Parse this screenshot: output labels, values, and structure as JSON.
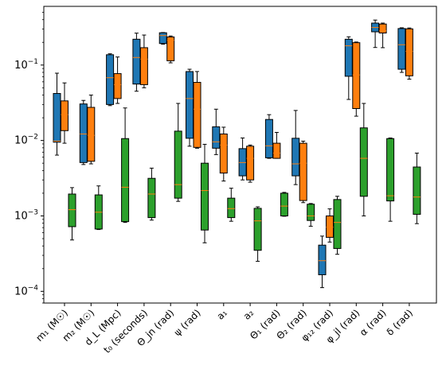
{
  "chart_data": {
    "type": "boxplot",
    "y_scale": "log",
    "ylim": [
      7e-05,
      0.6
    ],
    "y_ticks": [
      {
        "value": 0.0001,
        "base": "10",
        "exp": "−4"
      },
      {
        "value": 0.001,
        "base": "10",
        "exp": "−3"
      },
      {
        "value": 0.01,
        "base": "10",
        "exp": "−2"
      },
      {
        "value": 0.1,
        "base": "10",
        "exp": "−1"
      }
    ],
    "categories": [
      "m₁ (M☉)",
      "m₂ (M☉)",
      "d_L (Mpc)",
      "t₀ (seconds)",
      "Θ_jn (rad)",
      "ψ (rad)",
      "a₁",
      "a₂",
      "Θ₁ (rad)",
      "Θ₂ (rad)",
      "φ₁₂ (rad)",
      "φ_jl (rad)",
      "α (rad)",
      "δ (rad)"
    ],
    "series": [
      {
        "color": "#1f77b4",
        "boxes": [
          {
            "cat": 0,
            "min": 0.0064,
            "q1": 0.0095,
            "median": 0.0098,
            "q3": 0.042,
            "max": 0.078
          },
          {
            "cat": 1,
            "min": 0.0048,
            "q1": 0.0051,
            "median": 0.0122,
            "q3": 0.0305,
            "max": 0.034
          },
          {
            "cat": 2,
            "min": 0.029,
            "q1": 0.03,
            "median": 0.068,
            "q3": 0.137,
            "max": 0.141
          },
          {
            "cat": 3,
            "min": 0.045,
            "q1": 0.056,
            "median": 0.126,
            "q3": 0.22,
            "max": 0.265
          },
          {
            "cat": 4,
            "min": 0.189,
            "q1": 0.193,
            "median": 0.246,
            "q3": 0.268,
            "max": 0.27
          },
          {
            "cat": 5,
            "min": 0.0084,
            "q1": 0.0107,
            "median": 0.036,
            "q3": 0.082,
            "max": 0.088
          },
          {
            "cat": 6,
            "min": 0.0065,
            "q1": 0.0079,
            "median": 0.0096,
            "q3": 0.0152,
            "max": 0.026
          },
          {
            "cat": 7,
            "min": 0.003,
            "q1": 0.0034,
            "median": 0.0051,
            "q3": 0.0078,
            "max": 0.0108
          },
          {
            "cat": 8,
            "min": 0.0058,
            "q1": 0.0059,
            "median": 0.0085,
            "q3": 0.019,
            "max": 0.022
          },
          {
            "cat": 9,
            "min": 0.0026,
            "q1": 0.0034,
            "median": 0.0049,
            "q3": 0.0107,
            "max": 0.025
          },
          {
            "cat": 10,
            "min": 0.000112,
            "q1": 0.000166,
            "median": 0.000255,
            "q3": 0.00041,
            "max": 0.00054
          },
          {
            "cat": 11,
            "min": 0.035,
            "q1": 0.071,
            "median": 0.18,
            "q3": 0.22,
            "max": 0.237
          },
          {
            "cat": 12,
            "min": 0.171,
            "q1": 0.276,
            "median": 0.315,
            "q3": 0.36,
            "max": 0.395
          },
          {
            "cat": 13,
            "min": 0.08,
            "q1": 0.088,
            "median": 0.186,
            "q3": 0.305,
            "max": 0.312
          }
        ]
      },
      {
        "color": "#ff7f0e",
        "boxes": [
          {
            "cat": 0,
            "min": 0.0092,
            "q1": 0.0135,
            "median": 0.022,
            "q3": 0.0335,
            "max": 0.058
          },
          {
            "cat": 1,
            "min": 0.0049,
            "q1": 0.0053,
            "median": 0.0117,
            "q3": 0.0275,
            "max": 0.04
          },
          {
            "cat": 2,
            "min": 0.031,
            "q1": 0.036,
            "median": 0.055,
            "q3": 0.077,
            "max": 0.128
          },
          {
            "cat": 3,
            "min": 0.05,
            "q1": 0.055,
            "median": 0.12,
            "q3": 0.17,
            "max": 0.25
          },
          {
            "cat": 4,
            "min": 0.107,
            "q1": 0.114,
            "median": 0.213,
            "q3": 0.236,
            "max": 0.243
          },
          {
            "cat": 5,
            "min": 0.0079,
            "q1": 0.0081,
            "median": 0.026,
            "q3": 0.059,
            "max": 0.082
          },
          {
            "cat": 6,
            "min": 0.0029,
            "q1": 0.0037,
            "median": 0.0087,
            "q3": 0.0122,
            "max": 0.015
          },
          {
            "cat": 7,
            "min": 0.0028,
            "q1": 0.003,
            "median": 0.0058,
            "q3": 0.0084,
            "max": 0.0087
          },
          {
            "cat": 8,
            "min": 0.0058,
            "q1": 0.0058,
            "median": 0.0068,
            "q3": 0.0092,
            "max": 0.0128
          },
          {
            "cat": 9,
            "min": 0.0015,
            "q1": 0.0016,
            "median": 0.005,
            "q3": 0.0092,
            "max": 0.0098
          },
          {
            "cat": 10,
            "min": 0.00045,
            "q1": 0.00052,
            "median": 0.00071,
            "q3": 0.001,
            "max": 0.00124
          },
          {
            "cat": 11,
            "min": 0.021,
            "q1": 0.0265,
            "median": 0.074,
            "q3": 0.198,
            "max": 0.202
          },
          {
            "cat": 12,
            "min": 0.17,
            "q1": 0.266,
            "median": 0.286,
            "q3": 0.35,
            "max": 0.36
          },
          {
            "cat": 13,
            "min": 0.065,
            "q1": 0.072,
            "median": 0.152,
            "q3": 0.302,
            "max": 0.31
          }
        ]
      },
      {
        "color": "#2ca02c",
        "boxes": [
          {
            "cat": 0,
            "min": 0.00048,
            "q1": 0.00072,
            "median": 0.00121,
            "q3": 0.00195,
            "max": 0.00237
          },
          {
            "cat": 1,
            "min": 0.00066,
            "q1": 0.00067,
            "median": 0.00112,
            "q3": 0.0019,
            "max": 0.0025
          },
          {
            "cat": 2,
            "min": 0.00082,
            "q1": 0.00084,
            "median": 0.0024,
            "q3": 0.0106,
            "max": 0.027
          },
          {
            "cat": 3,
            "min": 0.00088,
            "q1": 0.00095,
            "median": 0.00195,
            "q3": 0.00315,
            "max": 0.0043
          },
          {
            "cat": 4,
            "min": 0.00156,
            "q1": 0.00172,
            "median": 0.0026,
            "q3": 0.0133,
            "max": 0.031
          },
          {
            "cat": 5,
            "min": 0.00044,
            "q1": 0.00065,
            "median": 0.00217,
            "q3": 0.005,
            "max": 0.0089
          },
          {
            "cat": 6,
            "min": 0.00085,
            "q1": 0.00095,
            "median": 0.00125,
            "q3": 0.00172,
            "max": 0.00233
          },
          {
            "cat": 7,
            "min": 0.00025,
            "q1": 0.00035,
            "median": 0.00086,
            "q3": 0.00126,
            "max": 0.00132
          },
          {
            "cat": 8,
            "min": 0.00099,
            "q1": 0.001,
            "median": 0.00135,
            "q3": 0.002,
            "max": 0.00205
          },
          {
            "cat": 9,
            "min": 0.00073,
            "q1": 0.00087,
            "median": 0.001,
            "q3": 0.00143,
            "max": 0.00146
          },
          {
            "cat": 10,
            "min": 0.00031,
            "q1": 0.00037,
            "median": 0.00082,
            "q3": 0.00165,
            "max": 0.00182
          },
          {
            "cat": 11,
            "min": 0.001,
            "q1": 0.00182,
            "median": 0.0058,
            "q3": 0.0147,
            "max": 0.031
          },
          {
            "cat": 12,
            "min": 0.00085,
            "q1": 0.00158,
            "median": 0.00185,
            "q3": 0.0106,
            "max": 0.0108
          },
          {
            "cat": 13,
            "min": 0.00079,
            "q1": 0.00105,
            "median": 0.00178,
            "q3": 0.00445,
            "max": 0.0068
          }
        ]
      }
    ],
    "median_color": "#ff7f0e",
    "grid": false,
    "legend": "none"
  }
}
